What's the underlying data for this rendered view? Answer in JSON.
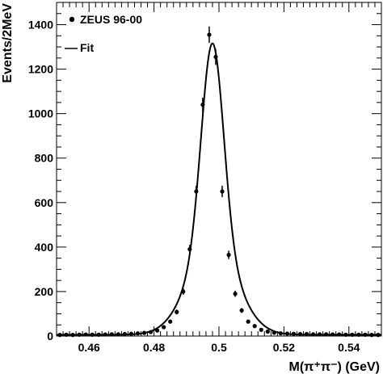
{
  "chart_data": {
    "type": "scatter",
    "title": "",
    "xlabel": "M(π⁺π⁻) (GeV)",
    "ylabel": "Events/2MeV",
    "xlim": [
      0.45,
      0.55
    ],
    "ylim": [
      0,
      1500
    ],
    "xticks": [
      0.46,
      0.48,
      0.5,
      0.52,
      0.54
    ],
    "xtick_labels": [
      "0.46",
      "0.48",
      "0.5",
      "0.52",
      "0.54"
    ],
    "yticks": [
      0,
      200,
      400,
      600,
      800,
      1000,
      1200,
      1400
    ],
    "ytick_labels": [
      "0",
      "200",
      "400",
      "600",
      "800",
      "1000",
      "1200",
      "1400"
    ],
    "legend_position": "top-left",
    "series": [
      {
        "name": "ZEUS 96-00",
        "kind": "points",
        "x": [
          0.451,
          0.453,
          0.455,
          0.457,
          0.459,
          0.461,
          0.463,
          0.465,
          0.467,
          0.469,
          0.471,
          0.473,
          0.475,
          0.477,
          0.479,
          0.481,
          0.483,
          0.485,
          0.487,
          0.489,
          0.491,
          0.493,
          0.495,
          0.497,
          0.499,
          0.501,
          0.503,
          0.505,
          0.507,
          0.509,
          0.511,
          0.513,
          0.515,
          0.517,
          0.519,
          0.521,
          0.523,
          0.525,
          0.527,
          0.529,
          0.531,
          0.533,
          0.535,
          0.537,
          0.539,
          0.541,
          0.543,
          0.545,
          0.547,
          0.549
        ],
        "y": [
          5,
          6,
          5,
          6,
          7,
          6,
          6,
          7,
          8,
          8,
          9,
          10,
          12,
          14,
          18,
          25,
          40,
          65,
          108,
          200,
          390,
          650,
          1040,
          1355,
          1255,
          650,
          365,
          190,
          115,
          65,
          45,
          28,
          20,
          15,
          12,
          11,
          10,
          9,
          9,
          8,
          8,
          8,
          7,
          7,
          6,
          6,
          6,
          6,
          5,
          5
        ],
        "yerr": [
          3,
          3,
          3,
          3,
          3,
          3,
          3,
          3,
          3,
          3,
          3,
          3,
          4,
          4,
          5,
          5,
          7,
          8,
          11,
          14,
          20,
          26,
          32,
          37,
          36,
          26,
          19,
          14,
          11,
          8,
          7,
          5,
          5,
          4,
          4,
          4,
          3,
          3,
          3,
          3,
          3,
          3,
          3,
          3,
          3,
          3,
          3,
          3,
          3,
          3
        ]
      },
      {
        "name": "Fit",
        "kind": "line",
        "model": "double-gaussian-plus-background",
        "mean": 0.498,
        "components": [
          {
            "amplitude": 920,
            "sigma": 0.0034
          },
          {
            "amplitude": 390,
            "sigma": 0.0075
          }
        ],
        "background": 6
      }
    ]
  }
}
